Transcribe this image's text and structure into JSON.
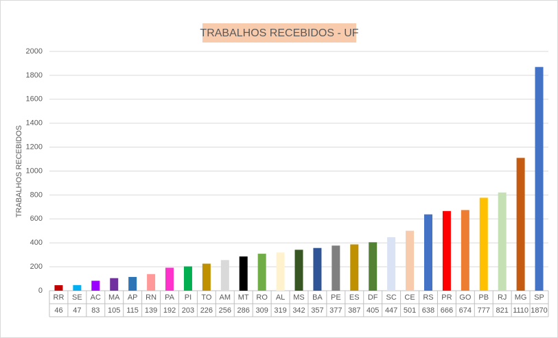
{
  "chart_data": {
    "type": "bar",
    "title": "TRABALHOS RECEBIDOS - UF",
    "y_label": "TRABALHOS  RECEBIDOS",
    "categories": [
      "RR",
      "SE",
      "AC",
      "MA",
      "AP",
      "RN",
      "PA",
      "PI",
      "TO",
      "AM",
      "MT",
      "RO",
      "AL",
      "MS",
      "BA",
      "PE",
      "ES",
      "DF",
      "SC",
      "CE",
      "RS",
      "PR",
      "GO",
      "PB",
      "RJ",
      "MG",
      "SP"
    ],
    "values": [
      46,
      47,
      83,
      105,
      115,
      139,
      192,
      203,
      226,
      256,
      286,
      309,
      319,
      342,
      357,
      377,
      387,
      405,
      447,
      501,
      638,
      666,
      674,
      777,
      821,
      1110,
      1870
    ],
    "colors": [
      "#c00000",
      "#00b0f0",
      "#9900ff",
      "#7030a0",
      "#2e75b6",
      "#ff9999",
      "#ff33cc",
      "#00b050",
      "#bf9000",
      "#d9d9d9",
      "#000000",
      "#70ad47",
      "#fff2cc",
      "#375623",
      "#2f5597",
      "#7f7f7f",
      "#bf9000",
      "#548235",
      "#dae3f3",
      "#f8cbad",
      "#4472c4",
      "#ff0000",
      "#ed7d31",
      "#ffc000",
      "#c5e0b4",
      "#c55a11",
      "#4472c4"
    ],
    "ylim": [
      0,
      2000
    ],
    "yticks": [
      0,
      200,
      400,
      600,
      800,
      1000,
      1200,
      1400,
      1600,
      1800,
      2000
    ],
    "grid": true,
    "data_table": true
  }
}
